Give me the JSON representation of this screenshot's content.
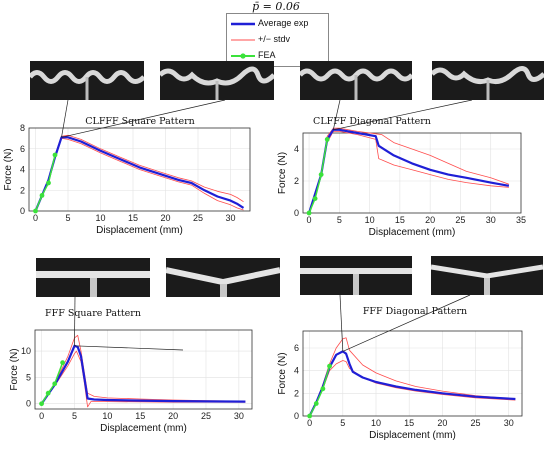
{
  "figure_title": "p̄ = 0.06",
  "legend": [
    {
      "label": "Average exp",
      "color": "#1f1fd6"
    },
    {
      "label": "+/− stdv",
      "color": "#ff4d4d"
    },
    {
      "label": "FEA",
      "color": "#3be23b"
    }
  ],
  "chart_data": [
    {
      "type": "line",
      "title": "CLFFF Square Pattern",
      "xlabel": "Displacement (mm)",
      "ylabel": "Force (N)",
      "xlim": [
        -1,
        33
      ],
      "ylim": [
        0,
        8
      ],
      "xticks": [
        0,
        5,
        10,
        15,
        20,
        25,
        30
      ],
      "yticks": [
        0,
        2,
        4,
        6,
        8
      ],
      "series": [
        {
          "role": "average",
          "x": [
            0,
            2,
            3,
            4,
            5,
            7,
            10,
            13,
            16,
            19,
            22,
            24,
            26,
            28,
            30,
            31,
            32
          ],
          "y": [
            0,
            3,
            5.2,
            7.1,
            7.1,
            6.7,
            5.8,
            5.0,
            4.2,
            3.6,
            3.0,
            2.7,
            2.0,
            1.4,
            1.0,
            0.7,
            0.3
          ]
        },
        {
          "role": "stdv_upper",
          "x": [
            0,
            2,
            3,
            4,
            5,
            7,
            10,
            13,
            16,
            19,
            22,
            24,
            26,
            28,
            30,
            31,
            32
          ],
          "y": [
            0,
            3,
            5.4,
            7.2,
            7.3,
            6.9,
            6.0,
            5.2,
            4.4,
            3.8,
            3.2,
            2.9,
            2.3,
            1.9,
            1.6,
            1.3,
            0.9
          ]
        },
        {
          "role": "stdv_lower",
          "x": [
            0,
            2,
            3,
            4,
            5,
            7,
            10,
            13,
            16,
            19,
            22,
            24,
            26,
            28,
            30,
            31,
            32
          ],
          "y": [
            0,
            3,
            5.1,
            7.0,
            6.9,
            6.5,
            5.6,
            4.8,
            4.0,
            3.4,
            2.8,
            2.5,
            1.7,
            1.0,
            0.6,
            0.3,
            0.1
          ]
        },
        {
          "role": "fea",
          "x": [
            0,
            1,
            2,
            3
          ],
          "y": [
            0,
            1.5,
            2.7,
            5.4
          ]
        }
      ]
    },
    {
      "type": "line",
      "title": "CLFFF Diagonal Pattern",
      "xlabel": "Displacement (mm)",
      "ylabel": "Force (N)",
      "xlim": [
        -1,
        35
      ],
      "ylim": [
        0,
        5
      ],
      "xticks": [
        0,
        5,
        10,
        15,
        20,
        25,
        30,
        35
      ],
      "yticks": [
        0,
        2,
        4
      ],
      "series": [
        {
          "role": "average",
          "x": [
            0,
            2,
            3,
            4,
            5,
            8,
            11,
            11.5,
            14,
            17,
            20,
            23,
            26,
            30,
            33
          ],
          "y": [
            0,
            2.4,
            4.6,
            5.2,
            5.2,
            5.0,
            4.8,
            4.2,
            3.6,
            3.1,
            2.7,
            2.4,
            2.2,
            1.9,
            1.7
          ]
        },
        {
          "role": "stdv_upper",
          "x": [
            0,
            2,
            3,
            4,
            5,
            8,
            11,
            12,
            14,
            17,
            20,
            23,
            26,
            30,
            33
          ],
          "y": [
            0,
            2.4,
            4.8,
            5.3,
            5.3,
            5.1,
            4.95,
            4.9,
            4.4,
            4.0,
            3.6,
            3.1,
            2.6,
            2.2,
            1.8
          ]
        },
        {
          "role": "stdv_lower",
          "x": [
            0,
            2,
            3,
            4,
            5,
            8,
            11,
            11.5,
            14,
            17,
            20,
            23,
            26,
            30,
            33
          ],
          "y": [
            0,
            2.3,
            4.4,
            5.1,
            5.1,
            4.9,
            4.6,
            3.4,
            3.0,
            2.7,
            2.4,
            2.1,
            1.9,
            1.7,
            1.6
          ]
        },
        {
          "role": "fea",
          "x": [
            0,
            1,
            2,
            3
          ],
          "y": [
            0,
            0.9,
            2.4,
            4.6
          ]
        }
      ]
    },
    {
      "type": "line",
      "title": "FFF Square Pattern",
      "xlabel": "Displacement (mm)",
      "ylabel": "Force (N)",
      "xlim": [
        -1,
        32
      ],
      "ylim": [
        -1,
        14
      ],
      "xticks": [
        0,
        5,
        10,
        15,
        20,
        25,
        30
      ],
      "yticks": [
        0,
        5,
        10
      ],
      "series": [
        {
          "role": "average",
          "x": [
            0,
            2,
            4,
            5,
            5.5,
            6,
            6.5,
            7,
            8,
            10,
            15,
            20,
            25,
            31
          ],
          "y": [
            0,
            3.6,
            8,
            11,
            10.8,
            9,
            5,
            1,
            0.8,
            0.7,
            0.6,
            0.5,
            0.45,
            0.4
          ]
        },
        {
          "role": "stdv_upper",
          "x": [
            0,
            2,
            4,
            5,
            5.5,
            6,
            6.5,
            7,
            8,
            10,
            15,
            20,
            25,
            31
          ],
          "y": [
            0,
            3.8,
            9,
            12.5,
            13,
            10,
            6,
            2,
            1.4,
            1.1,
            0.9,
            0.7,
            0.6,
            0.5
          ]
        },
        {
          "role": "stdv_lower",
          "x": [
            0,
            2,
            4,
            5,
            5.3,
            6,
            6.5,
            7,
            7.5,
            10,
            15,
            20,
            25,
            31
          ],
          "y": [
            0,
            3.4,
            7.2,
            9.5,
            10,
            8,
            4,
            -0.6,
            0.4,
            0.4,
            0.35,
            0.3,
            0.3,
            0.3
          ]
        },
        {
          "role": "fea",
          "x": [
            0,
            1,
            2,
            3.2
          ],
          "y": [
            0,
            2,
            3.8,
            7.8
          ]
        }
      ]
    },
    {
      "type": "line",
      "title": "FFF Diagonal Pattern",
      "xlabel": "Displacement (mm)",
      "ylabel": "Force (N)",
      "xlim": [
        -1,
        32
      ],
      "ylim": [
        0,
        7.5
      ],
      "xticks": [
        0,
        5,
        10,
        15,
        20,
        25,
        30
      ],
      "yticks": [
        0,
        2,
        4,
        6
      ],
      "series": [
        {
          "role": "average",
          "x": [
            0,
            1,
            2,
            3,
            4,
            5,
            5.5,
            6,
            6.5,
            8,
            10,
            13,
            16,
            20,
            25,
            31
          ],
          "y": [
            0,
            1.2,
            2.6,
            4.3,
            5.4,
            5.7,
            5.5,
            4.6,
            3.9,
            3.4,
            3.0,
            2.6,
            2.3,
            2.0,
            1.7,
            1.5
          ]
        },
        {
          "role": "stdv_upper",
          "x": [
            0,
            1,
            2,
            3,
            4,
            5,
            5.5,
            6,
            8,
            10,
            13,
            16,
            20,
            25,
            31
          ],
          "y": [
            0,
            1.3,
            2.8,
            4.6,
            6.0,
            6.8,
            6.9,
            5.8,
            4.5,
            3.8,
            3.1,
            2.6,
            2.2,
            1.8,
            1.5
          ]
        },
        {
          "role": "stdv_lower",
          "x": [
            0,
            1,
            2,
            3,
            4,
            5,
            5.5,
            6,
            8,
            10,
            13,
            16,
            20,
            25,
            31
          ],
          "y": [
            0,
            1.1,
            2.4,
            4.0,
            4.6,
            4.9,
            4.8,
            4.2,
            3.4,
            2.9,
            2.5,
            2.2,
            1.9,
            1.6,
            1.4
          ]
        },
        {
          "role": "fea",
          "x": [
            0,
            1,
            2,
            3
          ],
          "y": [
            0,
            1.1,
            2.4,
            4.4
          ]
        }
      ]
    }
  ]
}
